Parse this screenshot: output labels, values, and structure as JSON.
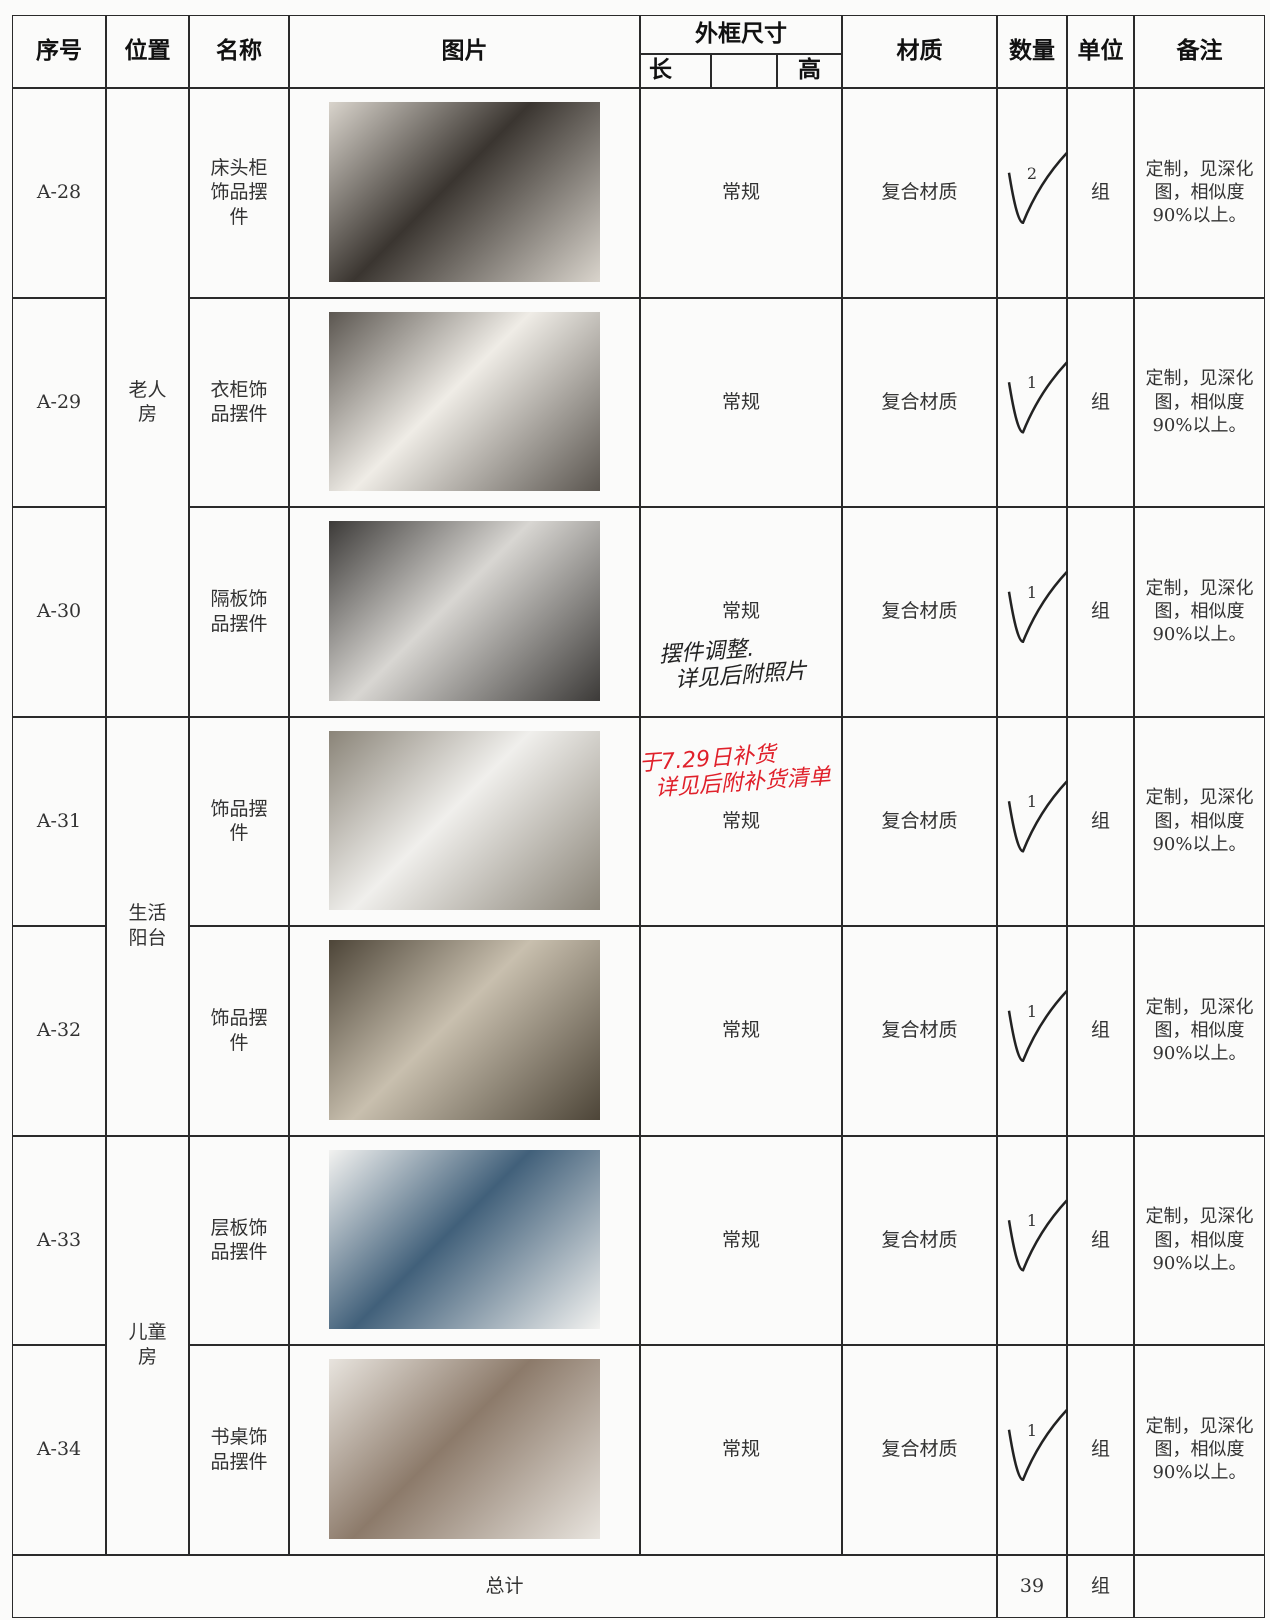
{
  "header": {
    "columns": [
      "序号",
      "位置",
      "名称",
      "图片",
      "外框尺寸",
      "材质",
      "数量",
      "单位",
      "备注"
    ],
    "size_sub": [
      "长",
      "高"
    ]
  },
  "locations": [
    {
      "label": "老人房",
      "items": [
        {
          "id": "A-28",
          "name": "床头柜饰品摆件",
          "size": "常规",
          "material": "复合材质",
          "qty": 2,
          "unit": "组",
          "note": "定制，见深化图，相似度90%以上。"
        },
        {
          "id": "A-29",
          "name": "衣柜饰品摆件",
          "size": "常规",
          "material": "复合材质",
          "qty": 1,
          "unit": "组",
          "note": "定制，见深化图，相似度90%以上。"
        },
        {
          "id": "A-30",
          "name": "隔板饰品摆件",
          "size": "常规",
          "material": "复合材质",
          "qty": 1,
          "unit": "组",
          "note": "定制，见深化图，相似度90%以上。"
        }
      ]
    },
    {
      "label": "生活阳台",
      "items": [
        {
          "id": "A-31",
          "name": "饰品摆件",
          "size": "常规",
          "material": "复合材质",
          "qty": 1,
          "unit": "组",
          "note": "定制，见深化图，相似度90%以上。"
        },
        {
          "id": "A-32",
          "name": "饰品摆件",
          "size": "常规",
          "material": "复合材质",
          "qty": 1,
          "unit": "组",
          "note": "定制，见深化图，相似度90%以上。"
        }
      ]
    },
    {
      "label": "儿童房",
      "items": [
        {
          "id": "A-33",
          "name": "层板饰品摆件",
          "size": "常规",
          "material": "复合材质",
          "qty": 1,
          "unit": "组",
          "note": "定制，见深化图，相似度90%以上。"
        },
        {
          "id": "A-34",
          "name": "书桌饰品摆件",
          "size": "常规",
          "material": "复合材质",
          "qty": 1,
          "unit": "组",
          "note": "定制，见深化图，相似度90%以上。"
        }
      ]
    }
  ],
  "total": {
    "label": "总计",
    "qty": 39,
    "unit": "组"
  },
  "annotations": [
    {
      "lines": [
        "摆件调整.",
        "详见后附照片"
      ],
      "color": "#222"
    },
    {
      "lines": [
        "于7.29日补货",
        "详见后附补货清单"
      ],
      "color": "#e0202a"
    }
  ]
}
